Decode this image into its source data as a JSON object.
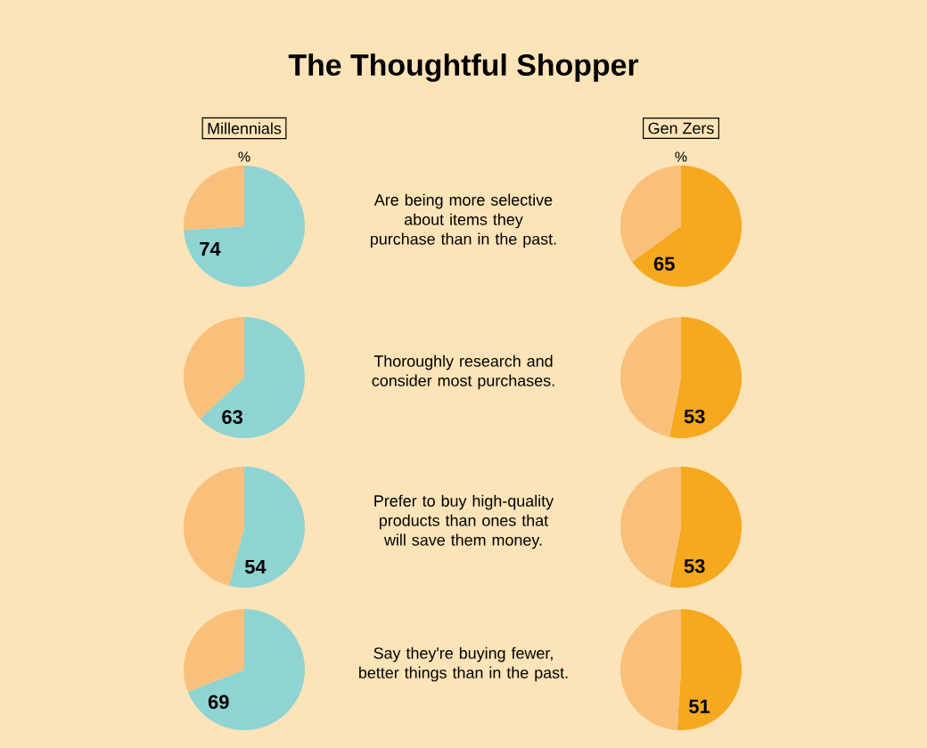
{
  "chart_data": [
    {
      "type": "other",
      "title": "The Thoughtful Shopper",
      "annotations": [
        "Are being more selective about items they purchase than in the past.",
        "Thoroughly research and consider most purchases.",
        "Prefer to buy high-quality products than ones that will save them money.",
        "Say they're buying fewer, better things than in the past."
      ]
    },
    {
      "type": "pie",
      "title": "Millennials",
      "subtitle": "%",
      "categories": [
        null,
        null
      ],
      "values": [
        74,
        26
      ],
      "colors": [
        "#8fd4d2",
        "#f9c07c"
      ],
      "value_labels": [
        "74",
        null
      ]
    },
    {
      "type": "pie",
      "title": "Gen Zers",
      "subtitle": "%",
      "categories": [
        null,
        null
      ],
      "values": [
        65,
        35
      ],
      "colors": [
        "#f6a81e",
        "#f9c07c"
      ],
      "value_labels": [
        "65",
        null
      ]
    },
    {
      "type": "pie",
      "categories": [
        null,
        null
      ],
      "values": [
        63,
        37
      ],
      "colors": [
        "#8fd4d2",
        "#f9c07c"
      ],
      "value_labels": [
        "63",
        null
      ]
    },
    {
      "type": "pie",
      "categories": [
        null,
        null
      ],
      "values": [
        53,
        47
      ],
      "colors": [
        "#f6a81e",
        "#f9c07c"
      ],
      "value_labels": [
        "53",
        null
      ]
    },
    {
      "type": "pie",
      "categories": [
        null,
        null
      ],
      "values": [
        54,
        46
      ],
      "colors": [
        "#8fd4d2",
        "#f9c07c"
      ],
      "value_labels": [
        "54",
        null
      ]
    },
    {
      "type": "pie",
      "categories": [
        null,
        null
      ],
      "values": [
        53,
        47
      ],
      "colors": [
        "#f6a81e",
        "#f9c07c"
      ],
      "value_labels": [
        "53",
        null
      ]
    },
    {
      "type": "pie",
      "categories": [
        null,
        null
      ],
      "values": [
        69,
        31
      ],
      "colors": [
        "#8fd4d2",
        "#f9c07c"
      ],
      "value_labels": [
        "69",
        null
      ]
    },
    {
      "type": "pie",
      "categories": [
        null,
        null
      ],
      "values": [
        51,
        49
      ],
      "colors": [
        "#f6a81e",
        "#f9c07c"
      ],
      "value_labels": [
        "51",
        null
      ]
    }
  ]
}
